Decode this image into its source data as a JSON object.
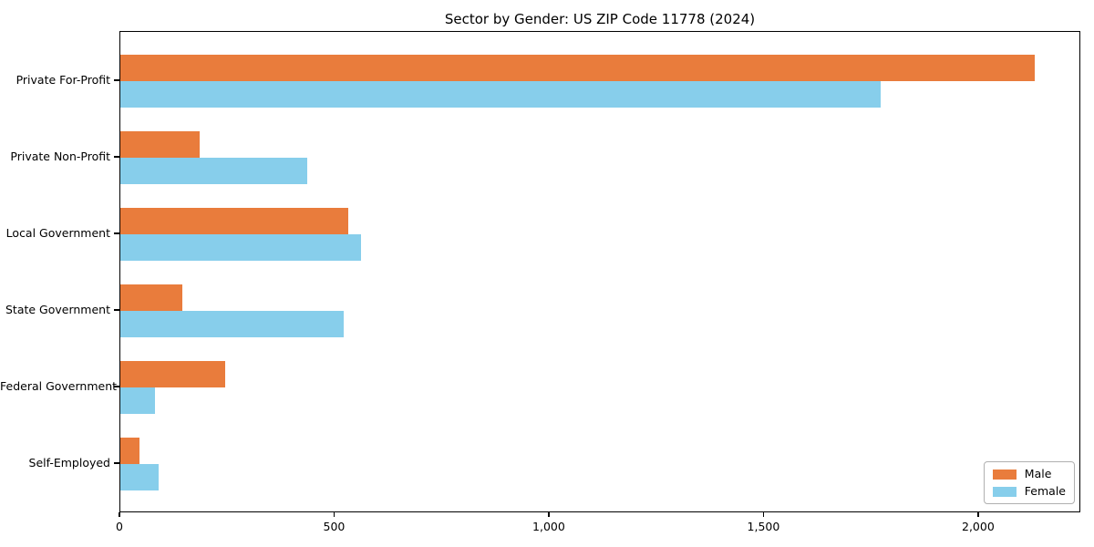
{
  "title": "Sector by Gender: US ZIP Code 11778 (2024)",
  "chart_data": {
    "type": "bar",
    "orientation": "horizontal",
    "title": "Sector by Gender: US ZIP Code 11778 (2024)",
    "categories": [
      "Private For-Profit",
      "Private Non-Profit",
      "Local Government",
      "State Government",
      "Federal Government",
      "Self-Employed"
    ],
    "series": [
      {
        "name": "Male",
        "color": "#E97C3C",
        "values": [
          2130,
          185,
          530,
          145,
          245,
          45
        ]
      },
      {
        "name": "Female",
        "color": "#87CEEB",
        "values": [
          1770,
          435,
          560,
          520,
          80,
          90
        ]
      }
    ],
    "xlabel": "",
    "ylabel": "",
    "xlim": [
      0,
      2238
    ],
    "xticks": [
      0,
      500,
      1000,
      1500,
      2000
    ],
    "xtick_labels": [
      "0",
      "500",
      "1,000",
      "1,500",
      "2,000"
    ],
    "legend_position": "lower right",
    "grid": false,
    "frame": true
  }
}
